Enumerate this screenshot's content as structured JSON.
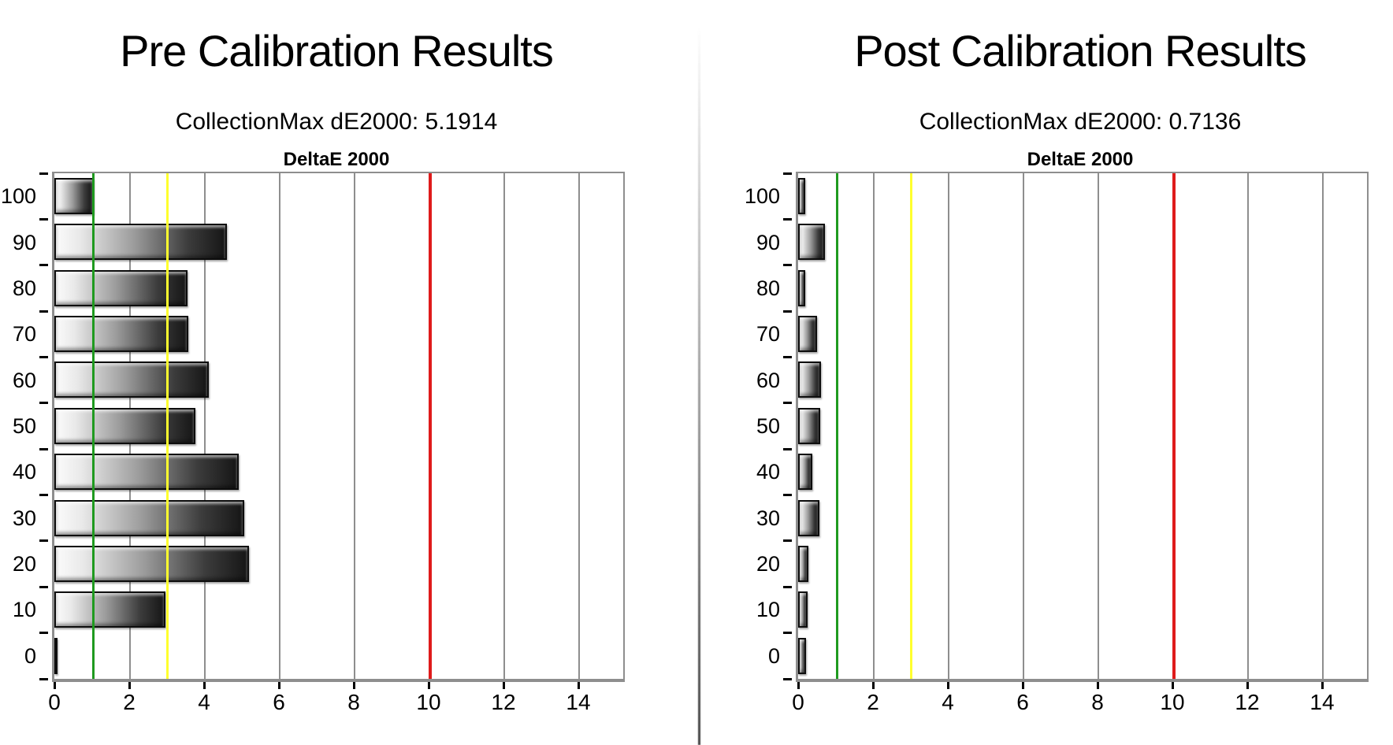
{
  "panels": [
    {
      "title": "Pre Calibration Results",
      "subtitle": "CollectionMax dE2000: 5.1914",
      "chart_title": "DeltaE 2000"
    },
    {
      "title": "Post Calibration Results",
      "subtitle": "CollectionMax dE2000: 0.7136",
      "chart_title": "DeltaE 2000"
    }
  ],
  "chart_data": [
    {
      "type": "bar",
      "orientation": "horizontal",
      "panel_title": "Pre Calibration Results",
      "subtitle": "CollectionMax dE2000: 5.1914",
      "collection_max_de2000": 5.1914,
      "title": "DeltaE 2000",
      "categories": [
        "100",
        "90",
        "80",
        "70",
        "60",
        "50",
        "40",
        "30",
        "20",
        "10",
        "0"
      ],
      "values": [
        1.05,
        4.6,
        3.55,
        3.58,
        4.12,
        3.77,
        4.93,
        5.07,
        5.19,
        2.97,
        0.07
      ],
      "xlabel": "",
      "ylabel": "",
      "xlim": [
        0,
        15.2
      ],
      "xticks": [
        0,
        2,
        4,
        6,
        8,
        10,
        12,
        14
      ],
      "grid": "vertical gridlines every 2 units",
      "reference_lines": [
        {
          "name": "green-target-line",
          "value": 1,
          "color": "#1f9a1f"
        },
        {
          "name": "yellow-warning-line",
          "value": 3,
          "color": "#ffff2e"
        },
        {
          "name": "red-limit-line",
          "value": 10,
          "color": "#df1b1b"
        }
      ]
    },
    {
      "type": "bar",
      "orientation": "horizontal",
      "panel_title": "Post Calibration Results",
      "subtitle": "CollectionMax dE2000: 0.7136",
      "collection_max_de2000": 0.7136,
      "title": "DeltaE 2000",
      "categories": [
        "100",
        "90",
        "80",
        "70",
        "60",
        "50",
        "40",
        "30",
        "20",
        "10",
        "0"
      ],
      "values": [
        0.19,
        0.71,
        0.18,
        0.51,
        0.6,
        0.59,
        0.37,
        0.56,
        0.28,
        0.25,
        0.21
      ],
      "xlabel": "",
      "ylabel": "",
      "xlim": [
        0,
        15.2
      ],
      "xticks": [
        0,
        2,
        4,
        6,
        8,
        10,
        12,
        14
      ],
      "grid": "vertical gridlines every 2 units",
      "reference_lines": [
        {
          "name": "green-target-line",
          "value": 1,
          "color": "#1f9a1f"
        },
        {
          "name": "yellow-warning-line",
          "value": 3,
          "color": "#ffff2e"
        },
        {
          "name": "red-limit-line",
          "value": 10,
          "color": "#df1b1b"
        }
      ]
    }
  ],
  "colors": {
    "gridline": "#8e8e8e",
    "axis": "#8e8e8e",
    "bar_border": "#0d0d0d",
    "green_line": "#1f9a1f",
    "yellow_line": "#ffff2e",
    "red_line": "#df1b1b",
    "text": "#000000",
    "background": "#ffffff"
  }
}
